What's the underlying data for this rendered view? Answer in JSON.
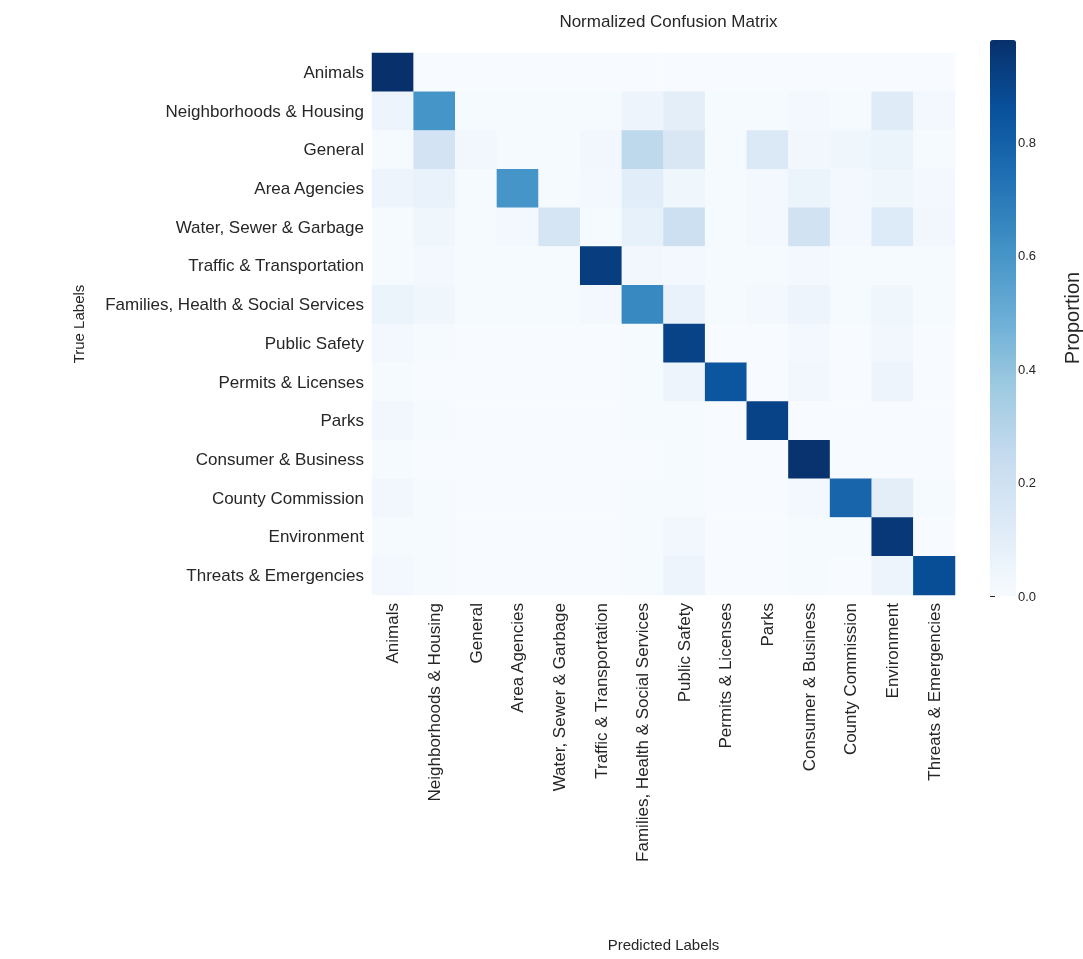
{
  "chart_data": {
    "type": "heatmap",
    "title": "Normalized Confusion Matrix",
    "xlabel": "Predicted Labels",
    "ylabel": "True Labels",
    "clabel": "Proportion",
    "categories": [
      "Animals",
      "Neighborhoods & Housing",
      "General",
      "Area Agencies",
      "Water, Sewer & Garbage",
      "Traffic & Transportation",
      "Families, Health & Social Services",
      "Public Safety",
      "Permits & Licenses",
      "Parks",
      "Consumer & Business",
      "County Commission",
      "Environment",
      "Threats & Emergencies"
    ],
    "y_categories": [
      "Animals",
      "Neighborhoods & Housing",
      "General",
      "Area Agencies",
      "Water, Sewer & Garbage",
      "Traffic & Transportation",
      "Families, Health & Social Services",
      "Public Safety",
      "Permits & Licenses",
      "Parks",
      "Consumer & Business",
      "County Commission",
      "Environment",
      "Threats & Emergencies"
    ],
    "cells": [
      [
        0.98,
        0,
        0,
        0,
        0,
        0,
        0,
        0,
        0,
        0,
        0,
        0,
        0,
        0
      ],
      [
        0.05,
        0.6,
        0.01,
        0.01,
        0.01,
        0.01,
        0.05,
        0.1,
        0.01,
        0.01,
        0.02,
        0.01,
        0.12,
        0.02
      ],
      [
        0.01,
        0.18,
        0.03,
        0.01,
        0.01,
        0.03,
        0.27,
        0.15,
        0.01,
        0.14,
        0.03,
        0.04,
        0.06,
        0.01
      ],
      [
        0.05,
        0.07,
        0.01,
        0.6,
        0.01,
        0.02,
        0.11,
        0.04,
        0.01,
        0.02,
        0.06,
        0.02,
        0.04,
        0.02
      ],
      [
        0.01,
        0.04,
        0.01,
        0.02,
        0.17,
        0.01,
        0.08,
        0.21,
        0.01,
        0.02,
        0.19,
        0.02,
        0.13,
        0.03
      ],
      [
        0.01,
        0.02,
        0.01,
        0.01,
        0.01,
        0.93,
        0.03,
        0.02,
        0.01,
        0.01,
        0.02,
        0.01,
        0.01,
        0.01
      ],
      [
        0.06,
        0.04,
        0.01,
        0.01,
        0.01,
        0.02,
        0.65,
        0.07,
        0.01,
        0.02,
        0.05,
        0.01,
        0.04,
        0.01
      ],
      [
        0.02,
        0.01,
        0,
        0,
        0,
        0,
        0.01,
        0.91,
        0,
        0,
        0.02,
        0,
        0.03,
        0
      ],
      [
        0.01,
        0,
        0,
        0,
        0,
        0,
        0.01,
        0.05,
        0.84,
        0,
        0.03,
        0,
        0.05,
        0
      ],
      [
        0.03,
        0.01,
        0,
        0,
        0,
        0,
        0.01,
        0.01,
        0,
        0.91,
        0,
        0,
        0,
        0
      ],
      [
        0.01,
        0,
        0,
        0,
        0,
        0,
        0,
        0.01,
        0,
        0,
        0.97,
        0,
        0,
        0
      ],
      [
        0.03,
        0.01,
        0,
        0,
        0,
        0,
        0.01,
        0.01,
        0,
        0,
        0.02,
        0.78,
        0.1,
        0.01
      ],
      [
        0.01,
        0.01,
        0,
        0,
        0,
        0,
        0.01,
        0.03,
        0,
        0,
        0.01,
        0.01,
        0.95,
        0
      ],
      [
        0.02,
        0.01,
        0,
        0,
        0,
        0,
        0.01,
        0.05,
        0,
        0,
        0.01,
        0,
        0.05,
        0.87
      ]
    ],
    "clim": [
      0,
      0.98
    ],
    "cticks": [
      {
        "value": 0,
        "label": "0.0"
      },
      {
        "value": 0.2,
        "label": "0.2"
      },
      {
        "value": 0.4,
        "label": "0.4"
      },
      {
        "value": 0.6,
        "label": "0.6"
      },
      {
        "value": 0.8,
        "label": "0.8"
      }
    ]
  }
}
